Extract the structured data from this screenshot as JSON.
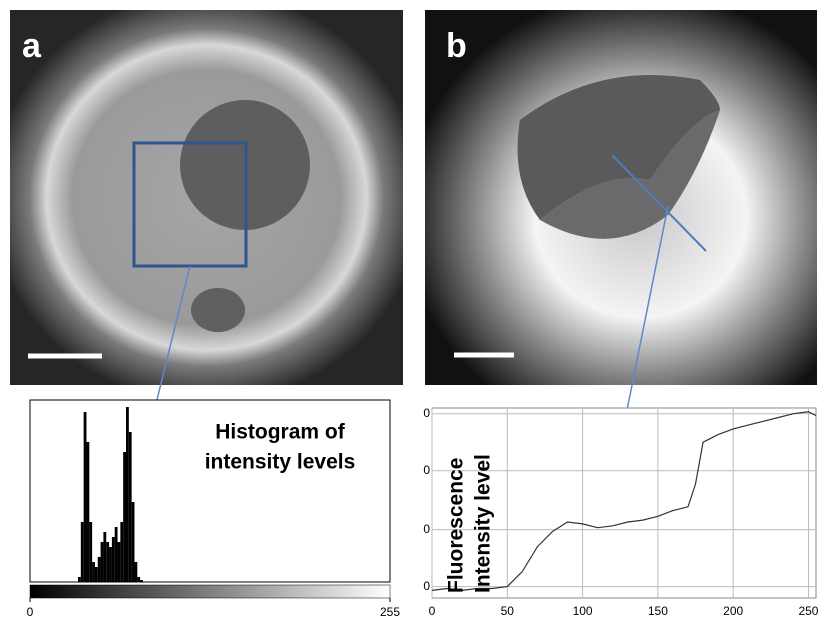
{
  "panel_labels": [
    "a",
    "b"
  ],
  "chart_data": [
    {
      "type": "histogram",
      "annotation": [
        "Histogram of",
        "intensity levels"
      ],
      "bins": [
        32,
        34,
        36,
        38,
        40,
        42,
        44,
        46,
        48,
        50,
        52,
        54,
        56,
        58,
        60,
        62,
        64,
        66,
        68,
        70,
        72,
        74,
        76,
        78,
        80
      ],
      "values": [
        0,
        5,
        60,
        170,
        140,
        60,
        20,
        15,
        25,
        40,
        50,
        40,
        35,
        45,
        55,
        40,
        60,
        130,
        175,
        150,
        80,
        20,
        5,
        2
      ],
      "color": "#000000",
      "xlim": [
        0,
        255
      ],
      "xticks": [
        0,
        255
      ],
      "ylim": [
        0,
        180
      ]
    },
    {
      "type": "line",
      "annotation": [
        "Fluorescence",
        "Intensity level"
      ],
      "x": [
        0,
        10,
        20,
        30,
        40,
        50,
        60,
        70,
        80,
        90,
        100,
        110,
        120,
        130,
        140,
        150,
        160,
        170,
        175,
        180,
        190,
        200,
        210,
        220,
        230,
        240,
        250,
        255
      ],
      "values": [
        4,
        5,
        4,
        5,
        5,
        6,
        14,
        27,
        35,
        40,
        39,
        37,
        38,
        40,
        41,
        43,
        46,
        48,
        60,
        82,
        86,
        89,
        91,
        93,
        95,
        97,
        98,
        96
      ],
      "color": "#333333",
      "grid": true,
      "xlim": [
        0,
        255
      ],
      "xticks": [
        0,
        50,
        100,
        150,
        200,
        250
      ],
      "ylim": [
        0,
        100
      ],
      "yticks": [
        {
          "value": 6,
          "label": "0"
        },
        {
          "value": 36,
          "label": "0"
        },
        {
          "value": 67,
          "label": "0"
        },
        {
          "value": 97,
          "label": "0"
        }
      ]
    }
  ]
}
